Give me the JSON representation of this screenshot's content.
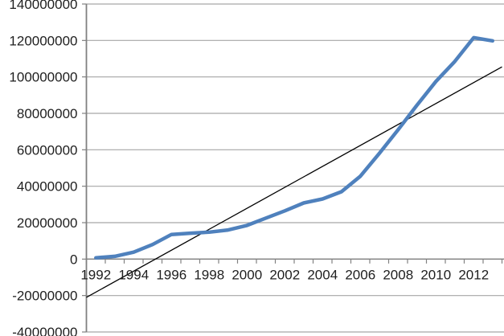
{
  "chart_data": {
    "type": "line",
    "title": "",
    "xlabel": "",
    "ylabel": "",
    "grid": true,
    "legend": false,
    "x": [
      1992,
      1993,
      1994,
      1995,
      1996,
      1997,
      1998,
      1999,
      2000,
      2001,
      2002,
      2003,
      2004,
      2005,
      2006,
      2007,
      2008,
      2009,
      2010,
      2011,
      2012,
      2013
    ],
    "series": [
      {
        "name": "data-series",
        "color": "#4F81BD",
        "stroke_width": 4.5,
        "values": [
          700000,
          1500000,
          3800000,
          8000000,
          13500000,
          14200000,
          14800000,
          16000000,
          18500000,
          22500000,
          26500000,
          30800000,
          33000000,
          37000000,
          45500000,
          58000000,
          71000000,
          84500000,
          97500000,
          108500000,
          121500000,
          119800000
        ]
      }
    ],
    "trendline": {
      "name": "linear-trendline",
      "color": "#000000",
      "stroke_width": 1.3,
      "start": {
        "year": 1991.5,
        "value": -21000000
      },
      "end": {
        "year": 2013.5,
        "value": 105500000
      }
    },
    "y_axis": {
      "min": -40000000,
      "max": 140000000,
      "step": 20000000,
      "tick_labels": [
        "140000000",
        "120000000",
        "100000000",
        "80000000",
        "60000000",
        "40000000",
        "20000000",
        "0",
        "-20000000",
        "-40000000"
      ]
    },
    "x_axis": {
      "label_years": [
        1992,
        1994,
        1996,
        1998,
        2000,
        2002,
        2004,
        2006,
        2008,
        2010,
        2012
      ],
      "tick_labels": [
        "1992",
        "1994",
        "1996",
        "1998",
        "2000",
        "2002",
        "2004",
        "2006",
        "2008",
        "2010",
        "2012"
      ]
    },
    "colors": {
      "gridline": "#A6A6A6",
      "axis_line": "#808080",
      "label_text": "#1f1f1f",
      "background": "#ffffff"
    }
  }
}
